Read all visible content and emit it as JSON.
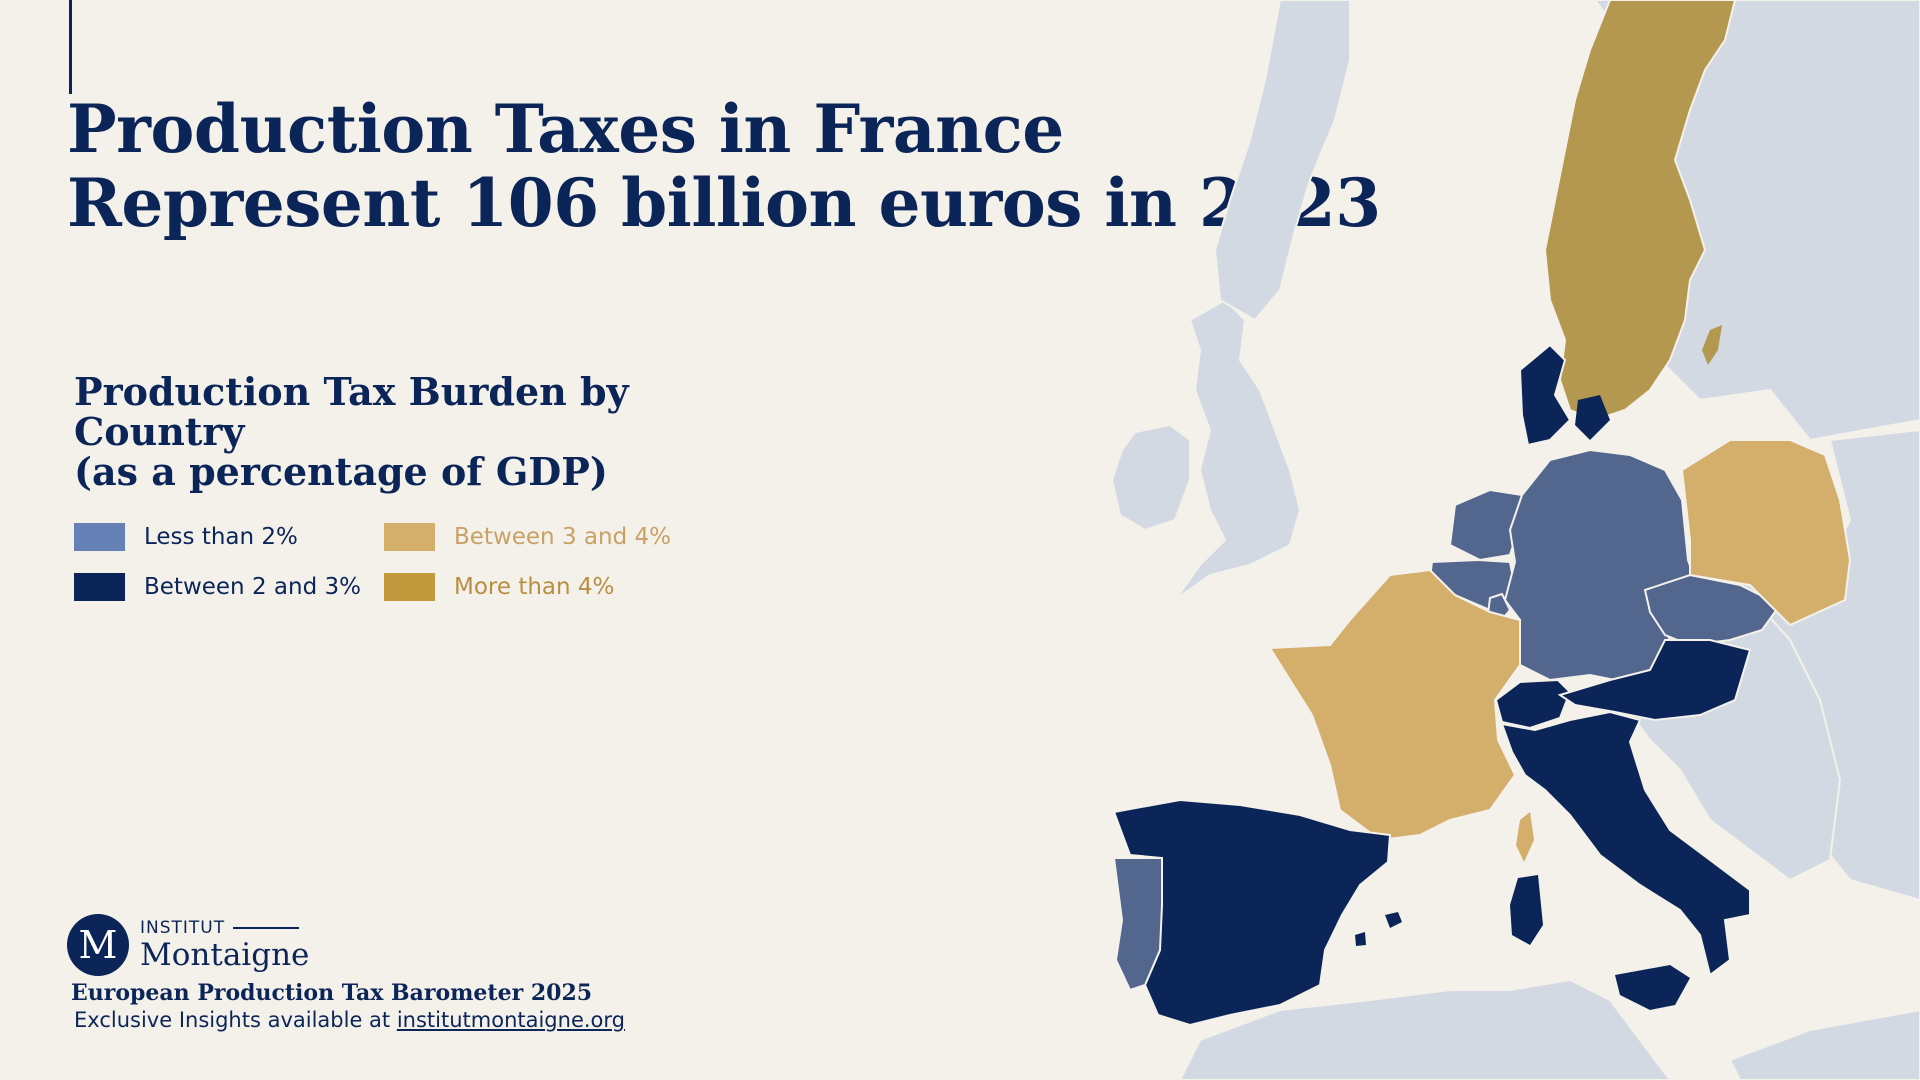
{
  "header": {
    "title_line1": "Production Taxes in France",
    "title_line2": "Represent 106 billion euros in 2023"
  },
  "legend": {
    "title_line1": "Production Tax Burden by",
    "title_line2": "Country",
    "title_line3": "(as a percentage of GDP)",
    "items": [
      {
        "label": "Less than 2%",
        "color": "#6581b5",
        "text_color": "#0b2558"
      },
      {
        "label": "Between 2 and 3%",
        "color": "#0b2558",
        "text_color": "#0b2558"
      },
      {
        "label": "Between 3 and 4%",
        "color": "#d4ae6b",
        "text_color": "#c8a164"
      },
      {
        "label": "More than 4%",
        "color": "#c3993e",
        "text_color": "#b88f42"
      }
    ]
  },
  "map": {
    "countries": [
      {
        "name": "Sweden",
        "category": "More than 4%"
      },
      {
        "name": "Denmark",
        "category": "Between 2 and 3%"
      },
      {
        "name": "Germany",
        "category": "Less than 2%"
      },
      {
        "name": "Netherlands",
        "category": "Less than 2%"
      },
      {
        "name": "Belgium",
        "category": "Less than 2%"
      },
      {
        "name": "Luxembourg",
        "category": "Less than 2%"
      },
      {
        "name": "Czechia",
        "category": "Less than 2%"
      },
      {
        "name": "Portugal",
        "category": "Less than 2%"
      },
      {
        "name": "Poland",
        "category": "Between 3 and 4%"
      },
      {
        "name": "France",
        "category": "Between 3 and 4%"
      },
      {
        "name": "Austria",
        "category": "Between 2 and 3%"
      },
      {
        "name": "Switzerland",
        "category": "Between 2 and 3%"
      },
      {
        "name": "Italy",
        "category": "Between 2 and 3%"
      },
      {
        "name": "Spain",
        "category": "Between 2 and 3%"
      }
    ],
    "colors": {
      "other_land": "#d3d9e3",
      "germany_group": "#53678e",
      "dark_navy": "#0b2558",
      "light_gold": "#d4ae6b",
      "gold": "#b5984f",
      "border": "#f4f1eb"
    }
  },
  "logo": {
    "mark": "M",
    "top": "INSTITUT",
    "name": "Montaigne"
  },
  "footer": {
    "title": "European Production Tax Barometer 2025",
    "prefix": "Exclusive Insights available at ",
    "link": "institutmontaigne.org"
  }
}
